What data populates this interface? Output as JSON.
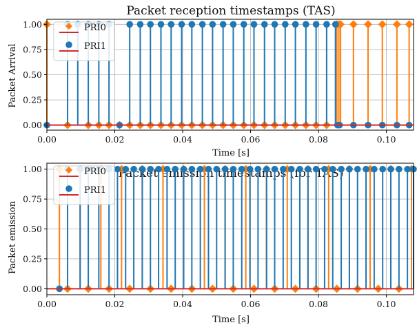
{
  "chart_data": [
    {
      "type": "stem",
      "title": "Packet reception timestamps (TAS)",
      "xlabel": "Time [s]",
      "ylabel": "Packet Arrival",
      "xlim": [
        0,
        0.108
      ],
      "ylim": [
        -0.05,
        1.05
      ],
      "xticks": [
        0,
        0.02,
        0.04,
        0.06,
        0.08,
        0.1
      ],
      "xtick_labels": [
        "0.00",
        "0.02",
        "0.04",
        "0.06",
        "0.08",
        "0.10"
      ],
      "yticks": [
        0,
        0.25,
        0.5,
        0.75,
        1.0
      ],
      "ytick_labels": [
        "0.00",
        "0.25",
        "0.50",
        "0.75",
        "1.00"
      ],
      "grid": true,
      "legend_position": "top-left",
      "series": [
        {
          "name": "PRI0",
          "marker": "diamond",
          "color": "#ff7f0e",
          "x": [
            0.0,
            0.0061,
            0.0122,
            0.0153,
            0.0183,
            0.0214,
            0.0244,
            0.0275,
            0.0305,
            0.0336,
            0.0366,
            0.0397,
            0.0427,
            0.0458,
            0.0488,
            0.0519,
            0.0549,
            0.058,
            0.061,
            0.0641,
            0.0671,
            0.0702,
            0.0732,
            0.0763,
            0.0793,
            0.0824,
            0.0854,
            0.086,
            0.0865,
            0.0903,
            0.0946,
            0.0988,
            0.1031,
            0.1067
          ],
          "y": [
            1,
            0,
            0,
            0,
            0,
            0,
            0,
            0,
            0,
            0,
            0,
            0,
            0,
            0,
            0,
            0,
            0,
            0,
            0,
            0,
            0,
            0,
            0,
            0,
            0,
            0,
            1,
            1,
            1,
            1,
            1,
            1,
            1,
            1
          ]
        },
        {
          "name": "PRI1",
          "marker": "circle",
          "color": "#1f77b4",
          "x": [
            0.0,
            0.0061,
            0.0091,
            0.0122,
            0.0153,
            0.0183,
            0.0214,
            0.0244,
            0.0275,
            0.0305,
            0.0336,
            0.0366,
            0.0397,
            0.0427,
            0.0458,
            0.0488,
            0.0519,
            0.0549,
            0.058,
            0.061,
            0.0641,
            0.0671,
            0.0702,
            0.0732,
            0.0763,
            0.0793,
            0.0824,
            0.085,
            0.0856,
            0.0862,
            0.0903,
            0.0946,
            0.0988,
            0.1031,
            0.1067
          ],
          "y": [
            0,
            1,
            1,
            1,
            1,
            1,
            0,
            1,
            1,
            1,
            1,
            1,
            1,
            1,
            1,
            1,
            1,
            1,
            1,
            1,
            1,
            1,
            1,
            1,
            1,
            1,
            1,
            1,
            0,
            0,
            0,
            0,
            0,
            0,
            0
          ]
        }
      ]
    },
    {
      "type": "stem",
      "title": "Packet emission timestamps (for TAS)",
      "xlabel": "Time [s]",
      "ylabel": "Packet emission",
      "xlim": [
        0,
        0.108
      ],
      "ylim": [
        -0.05,
        1.05
      ],
      "xticks": [
        0,
        0.02,
        0.04,
        0.06,
        0.08,
        0.1
      ],
      "xtick_labels": [
        "0.00",
        "0.02",
        "0.04",
        "0.06",
        "0.08",
        "0.10"
      ],
      "yticks": [
        0,
        0.25,
        0.5,
        0.75,
        1.0
      ],
      "ytick_labels": [
        "0.00",
        "0.25",
        "0.50",
        "0.75",
        "1.00"
      ],
      "grid": true,
      "legend_position": "top-left",
      "series": [
        {
          "name": "PRI0",
          "marker": "diamond",
          "color": "#ff7f0e",
          "x": [
            0.0037,
            0.0061,
            0.0098,
            0.0122,
            0.0159,
            0.0183,
            0.022,
            0.0244,
            0.0281,
            0.0305,
            0.0342,
            0.0366,
            0.0403,
            0.0427,
            0.0464,
            0.0488,
            0.0525,
            0.0549,
            0.0586,
            0.061,
            0.0647,
            0.0671,
            0.0708,
            0.0732,
            0.0769,
            0.0793,
            0.083,
            0.0854,
            0.0891,
            0.0915,
            0.0952,
            0.0976,
            0.1013,
            0.1037,
            0.1074
          ],
          "y": [
            1,
            0,
            1,
            0,
            1,
            0,
            1,
            0,
            1,
            0,
            1,
            0,
            1,
            0,
            1,
            0,
            1,
            0,
            1,
            0,
            1,
            0,
            1,
            0,
            1,
            0,
            1,
            0,
            1,
            0,
            1,
            0,
            1,
            0,
            1
          ]
        },
        {
          "name": "PRI1",
          "marker": "circle",
          "color": "#1f77b4",
          "x": [
            0.0037,
            0.0061,
            0.0098,
            0.0122,
            0.0153,
            0.0183,
            0.0208,
            0.0232,
            0.0256,
            0.0281,
            0.0305,
            0.0329,
            0.0354,
            0.0378,
            0.0403,
            0.0427,
            0.0452,
            0.0476,
            0.05,
            0.0525,
            0.0549,
            0.0574,
            0.0598,
            0.0622,
            0.0647,
            0.0671,
            0.0696,
            0.072,
            0.0745,
            0.0769,
            0.0793,
            0.0818,
            0.0842,
            0.0867,
            0.0891,
            0.0915,
            0.094,
            0.0964,
            0.0989,
            0.1013,
            0.1037,
            0.1062,
            0.108
          ],
          "y": [
            0,
            1,
            1,
            1,
            1,
            1,
            1,
            1,
            1,
            1,
            1,
            1,
            1,
            1,
            1,
            1,
            1,
            1,
            1,
            1,
            1,
            1,
            1,
            1,
            1,
            1,
            1,
            1,
            1,
            1,
            1,
            1,
            1,
            1,
            1,
            1,
            1,
            1,
            1,
            1,
            1,
            1,
            1
          ]
        }
      ]
    }
  ],
  "colors": {
    "baseline": "#d62728",
    "grid": "#b0b0b0",
    "pri0": "#ff7f0e",
    "pri1": "#1f77b4"
  }
}
